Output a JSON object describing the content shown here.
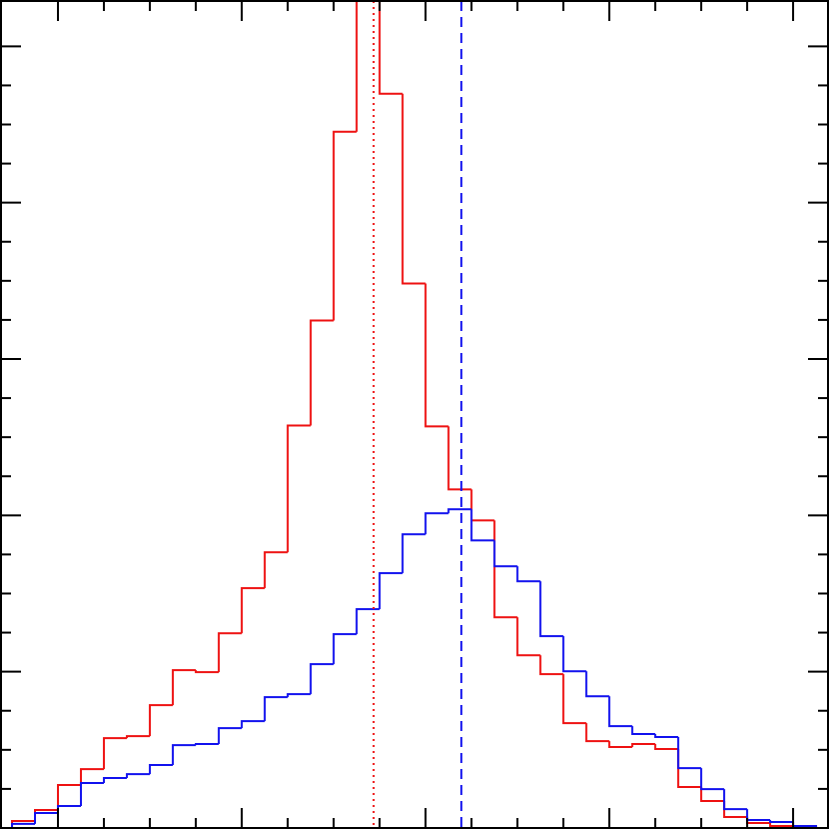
{
  "chart_data": {
    "type": "histogram",
    "bins": [
      -1,
      -0.5,
      0,
      0.5,
      1,
      1.5,
      2,
      2.5,
      3,
      3.5,
      4,
      4.5,
      5,
      5.5,
      6,
      6.5,
      7,
      7.5,
      8,
      8.5,
      9,
      9.5,
      10,
      10.5,
      11,
      11.5,
      12,
      12.5,
      13,
      13.5,
      14,
      14.5,
      15,
      15.5,
      16,
      16.5
    ],
    "series": [
      {
        "color": "#ee1111",
        "values": [
          4.5,
          11.5,
          27.5,
          37.7,
          57.5,
          58.8,
          78.6,
          101,
          99.7,
          124.6,
          153.4,
          176.4,
          257.5,
          324.6,
          445.4,
          560,
          469.7,
          348.3,
          256.9,
          216.6,
          196.8,
          134.8,
          110.5,
          98.4,
          67.1,
          55.6,
          51.8,
          53.7,
          50.5,
          26.2,
          17.3,
          7,
          3.2,
          1.3,
          0.6
        ]
      },
      {
        "color": "#1111ee",
        "values": [
          2.6,
          9.6,
          14.1,
          28.8,
          32,
          34.5,
          40.3,
          53,
          53.7,
          63.9,
          68.4,
          83.7,
          85.6,
          104.8,
          124,
          140,
          163,
          187.9,
          201.3,
          203.9,
          184,
          167.4,
          157.8,
          122.7,
          100.3,
          84.3,
          65.2,
          60.1,
          58.2,
          38.3,
          24.9,
          12.1,
          5.1,
          3.8,
          1.3
        ]
      }
    ],
    "vlines": [
      {
        "x": 6.87,
        "color": "#ee1111",
        "style": "dotted"
      },
      {
        "x": 8.78,
        "color": "#1111ee",
        "style": "dashed"
      }
    ],
    "xlim": [
      -1.24,
      16.76
    ],
    "ylim": [
      0,
      529
    ],
    "xticks": [
      0,
      4,
      8,
      12,
      16
    ],
    "xminorticks": [
      1,
      2,
      3,
      5,
      6,
      7,
      9,
      10,
      11,
      13,
      14,
      15
    ],
    "yticks": [
      0,
      100,
      200,
      300,
      400,
      500
    ],
    "yminorticks": [
      25,
      50,
      75,
      125,
      150,
      175,
      225,
      250,
      275,
      325,
      350,
      375,
      425,
      450,
      475
    ]
  }
}
